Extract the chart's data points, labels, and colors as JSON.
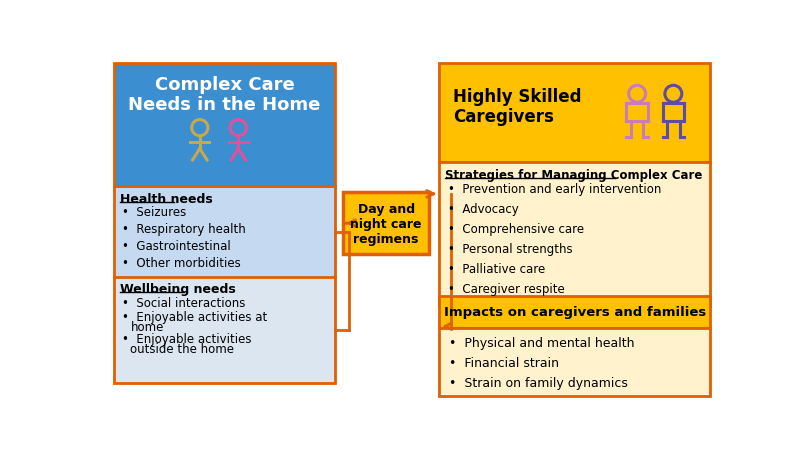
{
  "fig_width": 8.0,
  "fig_height": 4.56,
  "bg_color": "#ffffff",
  "box_left_title_text": "Complex Care\nNeeds in the Home",
  "box_left_title_bg": "#3b8ed0",
  "box_left_title_text_color": "#ffffff",
  "box_health_bg": "#c5d9f1",
  "box_health_title": "Health needs",
  "box_health_items": [
    "Seizures",
    "Respiratory health",
    "Gastrointestinal",
    "Other morbidities"
  ],
  "box_wellbeing_bg": "#dce6f1",
  "box_wellbeing_title": "Wellbeing needs",
  "box_wellbeing_items": [
    "Social interactions",
    "Enjoyable activities at\nhome",
    "Enjoyable activities\noutside the home"
  ],
  "box_day_night_text": "Day and\nnight care\nregimens",
  "box_day_night_bg": "#ffc000",
  "box_day_night_border": "#e06000",
  "box_skilled_title": "Highly Skilled\nCaregivers",
  "box_skilled_bg": "#ffc000",
  "box_skilled_border": "#e06000",
  "box_strategies_bg": "#fff2cc",
  "box_strategies_border": "#e06000",
  "box_strategies_title": "Strategies for Managing Complex Care",
  "box_strategies_items": [
    "Prevention and early intervention",
    "Advocacy",
    "Comprehensive care",
    "Personal strengths",
    "Palliative care",
    "Caregiver respite"
  ],
  "box_impacts_title_bg": "#ffc000",
  "box_impacts_title_border": "#e06000",
  "box_impacts_title": "Impacts on caregivers and families",
  "box_impacts_bg": "#fff2cc",
  "box_impacts_border": "#e06000",
  "box_impacts_items": [
    "Physical and mental health",
    "Financial strain",
    "Strain on family dynamics"
  ],
  "arrow_color": "#e06000",
  "left_border_color": "#e06000",
  "text_color": "#000000",
  "icon_color_boy": "#c8a84b",
  "icon_color_girl": "#e0529a",
  "icon_color_person1": "#c77eb5",
  "icon_color_person2": "#5b4ea0"
}
